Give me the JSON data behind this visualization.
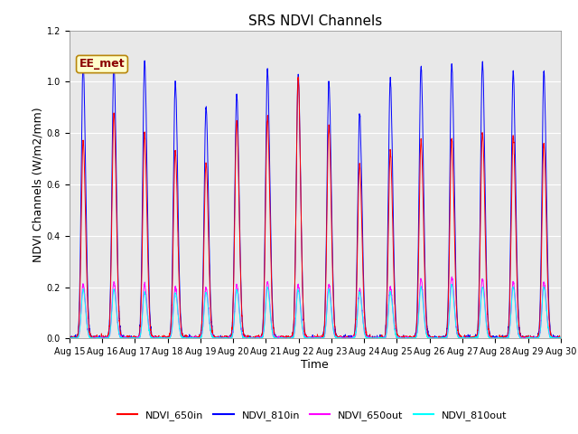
{
  "title": "SRS NDVI Channels",
  "xlabel": "Time",
  "ylabel": "NDVI Channels (W/m2/mm)",
  "annotation": "EE_met",
  "ylim": [
    0.0,
    1.2
  ],
  "legend_labels": [
    "NDVI_650in",
    "NDVI_810in",
    "NDVI_650out",
    "NDVI_810out"
  ],
  "line_colors": [
    "red",
    "blue",
    "magenta",
    "cyan"
  ],
  "background_color": "#e8e8e8",
  "xtick_labels": [
    "Aug 15",
    "Aug 16",
    "Aug 17",
    "Aug 18",
    "Aug 19",
    "Aug 20",
    "Aug 21",
    "Aug 22",
    "Aug 23",
    "Aug 24",
    "Aug 25",
    "Aug 26",
    "Aug 27",
    "Aug 28",
    "Aug 29",
    "Aug 30"
  ],
  "num_days": 16,
  "day_peaks_650in": [
    0.77,
    0.88,
    0.8,
    0.73,
    0.68,
    0.85,
    0.86,
    1.01,
    0.83,
    0.68,
    0.73,
    0.77,
    0.78,
    0.8,
    0.79,
    0.76
  ],
  "day_peaks_810in": [
    1.07,
    1.07,
    1.08,
    1.0,
    0.9,
    0.95,
    1.05,
    1.03,
    1.0,
    0.88,
    1.01,
    1.06,
    1.07,
    1.08,
    1.04,
    1.04
  ],
  "day_peaks_650out": [
    0.21,
    0.22,
    0.21,
    0.2,
    0.2,
    0.21,
    0.22,
    0.21,
    0.21,
    0.19,
    0.2,
    0.23,
    0.24,
    0.23,
    0.22,
    0.22
  ],
  "day_peaks_810out": [
    0.19,
    0.19,
    0.18,
    0.18,
    0.18,
    0.19,
    0.2,
    0.19,
    0.19,
    0.18,
    0.18,
    0.2,
    0.21,
    0.2,
    0.2,
    0.2
  ],
  "pts_per_day": 200,
  "title_fontsize": 11,
  "label_fontsize": 9,
  "tick_fontsize": 7,
  "legend_fontsize": 8
}
